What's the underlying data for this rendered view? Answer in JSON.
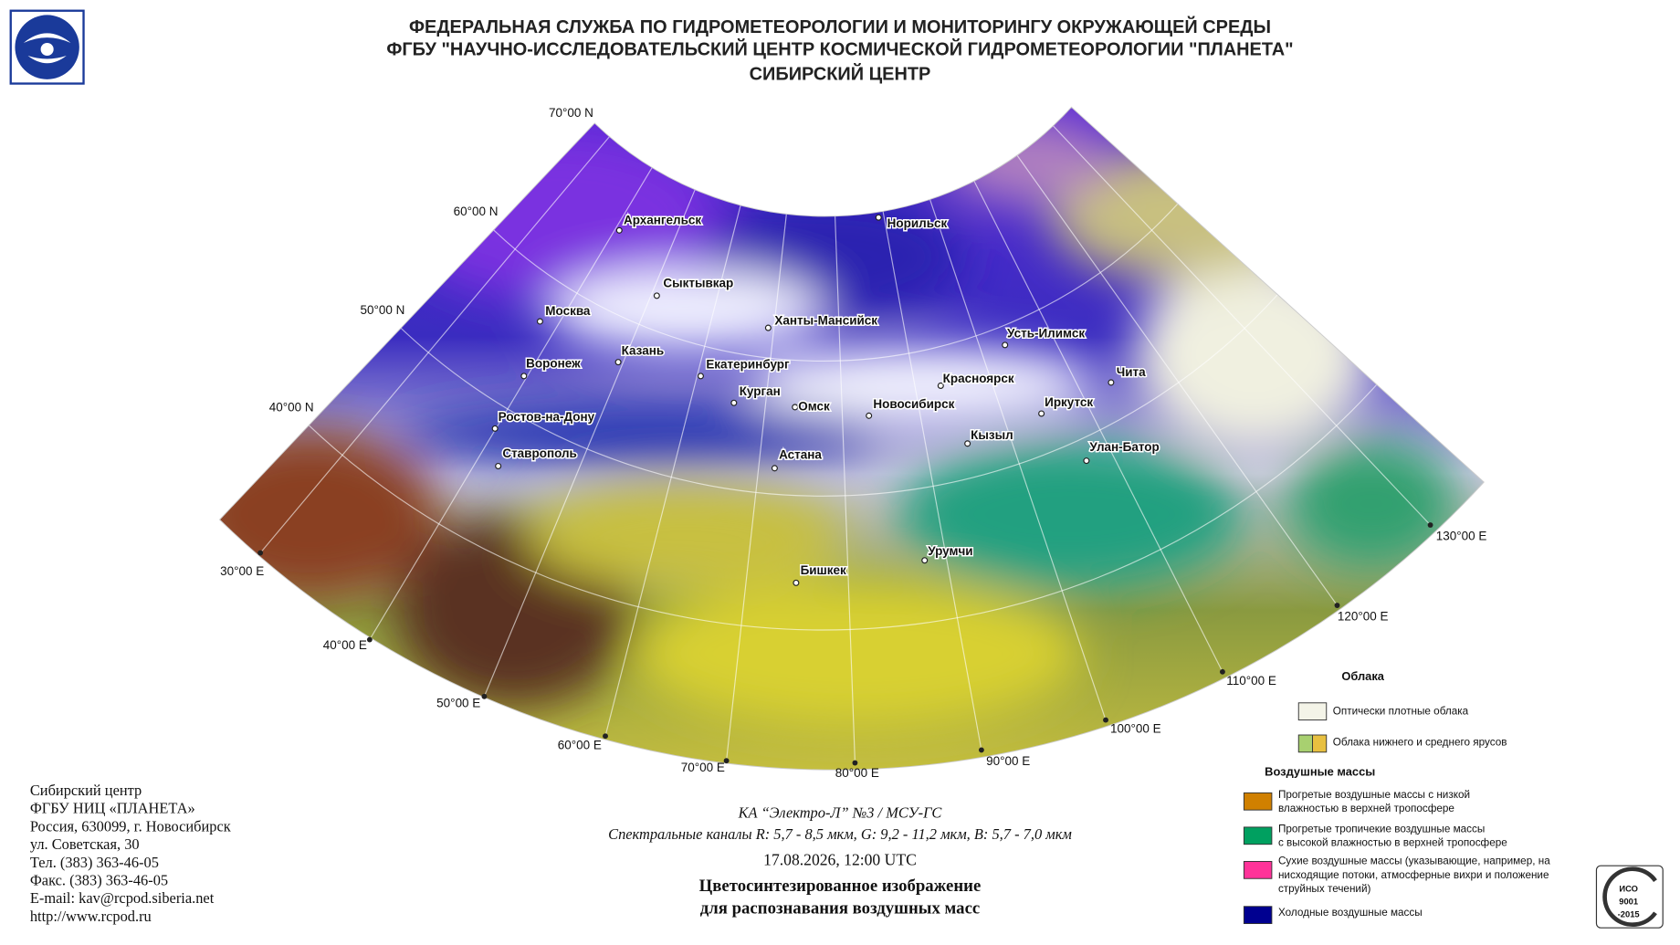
{
  "header": {
    "lines": [
      "ФЕДЕРАЛЬНАЯ СЛУЖБА ПО ГИДРОМЕТЕОРОЛОГИИ И МОНИТОРИНГУ ОКРУЖАЮЩЕЙ СРЕДЫ",
      "ФГБУ \"НАУЧНО-ИССЛЕДОВАТЕЛЬСКИЙ ЦЕНТР КОСМИЧЕСКОЙ ГИДРОМЕТЕОРОЛОГИИ \"ПЛАНЕТА\"",
      "СИБИРСКИЙ ЦЕНТР"
    ]
  },
  "map": {
    "lat_labels": [
      "70°00 N",
      "60°00 N",
      "50°00 N",
      "40°00 N"
    ],
    "lon_labels": [
      "30°00 E",
      "40°00 E",
      "50°00 E",
      "60°00 E",
      "70°00 E",
      "80°00 E",
      "90°00 E",
      "100°00 E",
      "110°00 E",
      "120°00 E",
      "130°00 E"
    ],
    "cities": [
      "Архангельск",
      "Норильск",
      "Сыктывкар",
      "Москва",
      "Ханты-Мансийск",
      "Усть-Илимск",
      "Казань",
      "Воронеж",
      "Екатеринбург",
      "Красноярск",
      "Чита",
      "Курган",
      "Омск",
      "Новосибирск",
      "Иркутск",
      "Ростов-на-Дону",
      "Кызыл",
      "Улан-Батор",
      "Ставрополь",
      "Астана",
      "Урумчи",
      "Бишкек"
    ]
  },
  "legend": {
    "clouds_title": "Облака",
    "clouds": [
      [
        "Оптически плотные облака"
      ],
      [
        "Облака нижнего и среднего ярусов"
      ]
    ],
    "air_title": "Воздушные массы",
    "air": [
      [
        "Прогретые воздушные массы с низкой",
        "влажностью в верхней тропосфере"
      ],
      [
        "Прогретые тропичекие воздушные массы",
        "с высокой влажностью в верхней тропосфере"
      ],
      [
        "Сухие воздушные массы (указывающие, например, на",
        "нисходящие потоки, атмосферные вихри и положение",
        "струйных течений)"
      ],
      [
        "Холодные воздушные массы"
      ]
    ]
  },
  "footer": {
    "contact": [
      "Сибирский центр",
      "ФГБУ НИЦ «ПЛАНЕТА»",
      "Россия, 630099, г. Новосибирск",
      "ул. Советская, 30",
      "Тел. (383) 363-46-05",
      "Факс. (383) 363-46-05",
      "E-mail: kav@rcpod.siberia.net",
      "http://www.rcpod.ru"
    ],
    "satellite": "КА “Электро-Л” №3 / МСУ-ГС",
    "channels": "Спектральные каналы R: 5,7 - 8,5 мкм, G: 9,2 - 11,2 мкм, B: 5,7 - 7,0 мкм",
    "datetime": "17.08.2026, 12:00 UTC",
    "title": [
      "Цветосинтезированное изображение",
      "для распознавания воздушных масс"
    ]
  },
  "iso": [
    "ИСО",
    "9001",
    "-2015"
  ]
}
